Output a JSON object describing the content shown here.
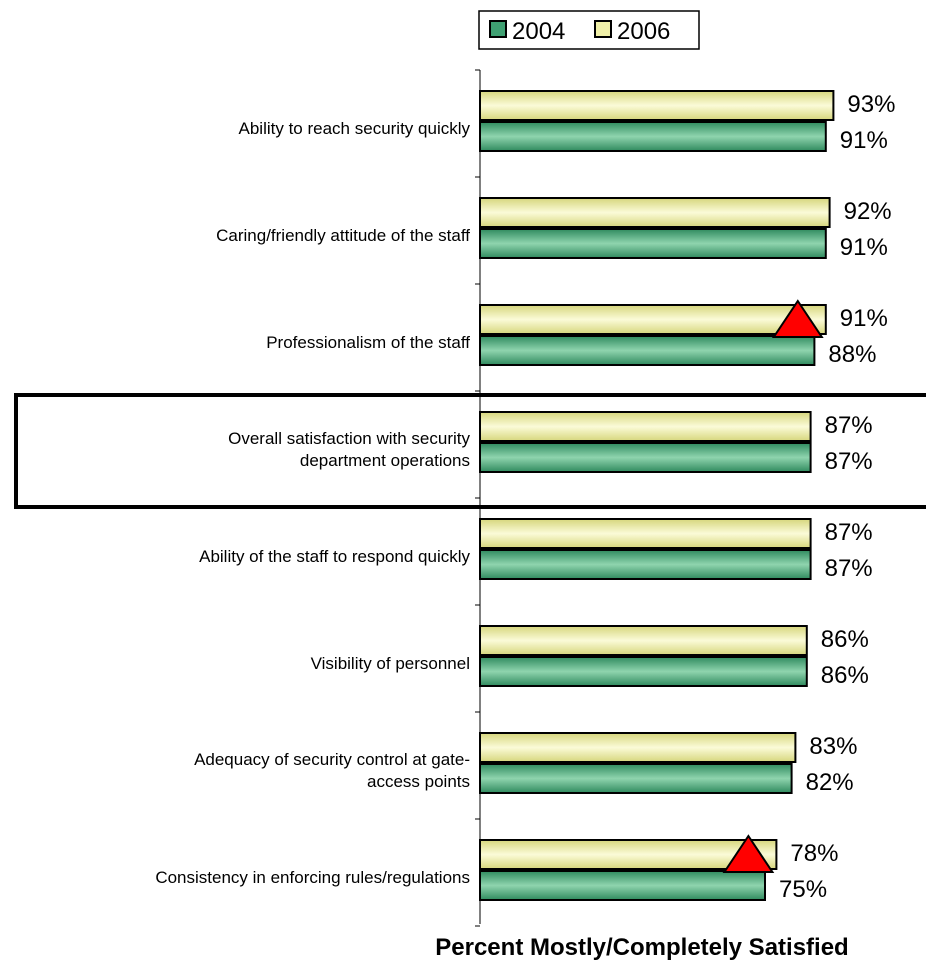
{
  "chart_data": {
    "type": "bar",
    "orientation": "horizontal",
    "categories": [
      [
        "Ability to reach security quickly"
      ],
      [
        "Caring/friendly attitude of the staff"
      ],
      [
        "Professionalism of the staff"
      ],
      [
        "Overall satisfaction with security",
        "department operations"
      ],
      [
        "Ability of the staff to respond quickly"
      ],
      [
        "Visibility of personnel"
      ],
      [
        "Adequacy of security control at gate-",
        "access points"
      ],
      [
        "Consistency in enforcing rules/regulations"
      ]
    ],
    "series": [
      {
        "name": "2006",
        "color": "#f0f0a8",
        "values": [
          93,
          92,
          91,
          87,
          87,
          86,
          83,
          78
        ],
        "labels": [
          "93%",
          "92%",
          "91%",
          "87%",
          "87%",
          "86%",
          "83%",
          "78%"
        ]
      },
      {
        "name": "2004",
        "color": "#3fa072",
        "values": [
          91,
          91,
          88,
          87,
          87,
          86,
          82,
          75
        ],
        "labels": [
          "91%",
          "91%",
          "88%",
          "87%",
          "87%",
          "86%",
          "82%",
          "75%"
        ]
      }
    ],
    "legend": {
      "placement": "top",
      "entries": [
        "2004",
        "2006"
      ]
    },
    "xlabel": "Percent Mostly/Completely Satisfied",
    "ylabel": "",
    "xlim": [
      0,
      100
    ],
    "grid": false,
    "highlighted_category_index": 3,
    "annotations": [
      {
        "type": "triangle",
        "category_index": 2,
        "series": "2006",
        "color": "#ff0000"
      },
      {
        "type": "triangle",
        "category_index": 7,
        "series": "2006",
        "color": "#ff0000"
      }
    ]
  }
}
